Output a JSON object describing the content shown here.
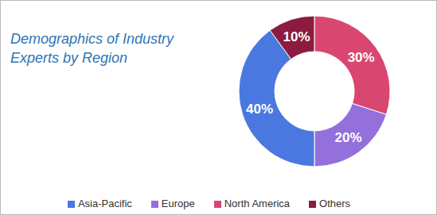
{
  "chart_data": {
    "type": "pie",
    "title": "Demographics of Industry Experts by Region",
    "categories": [
      "North America",
      "Europe",
      "Asia-Pacific",
      "Others"
    ],
    "values": [
      30,
      20,
      40,
      10
    ],
    "value_labels": [
      "30%",
      "20%",
      "40%",
      "10%"
    ],
    "colors": [
      "#d9466f",
      "#9370db",
      "#4a78e0",
      "#8b1c40"
    ],
    "data_labels": true,
    "legend": "bottom"
  }
}
